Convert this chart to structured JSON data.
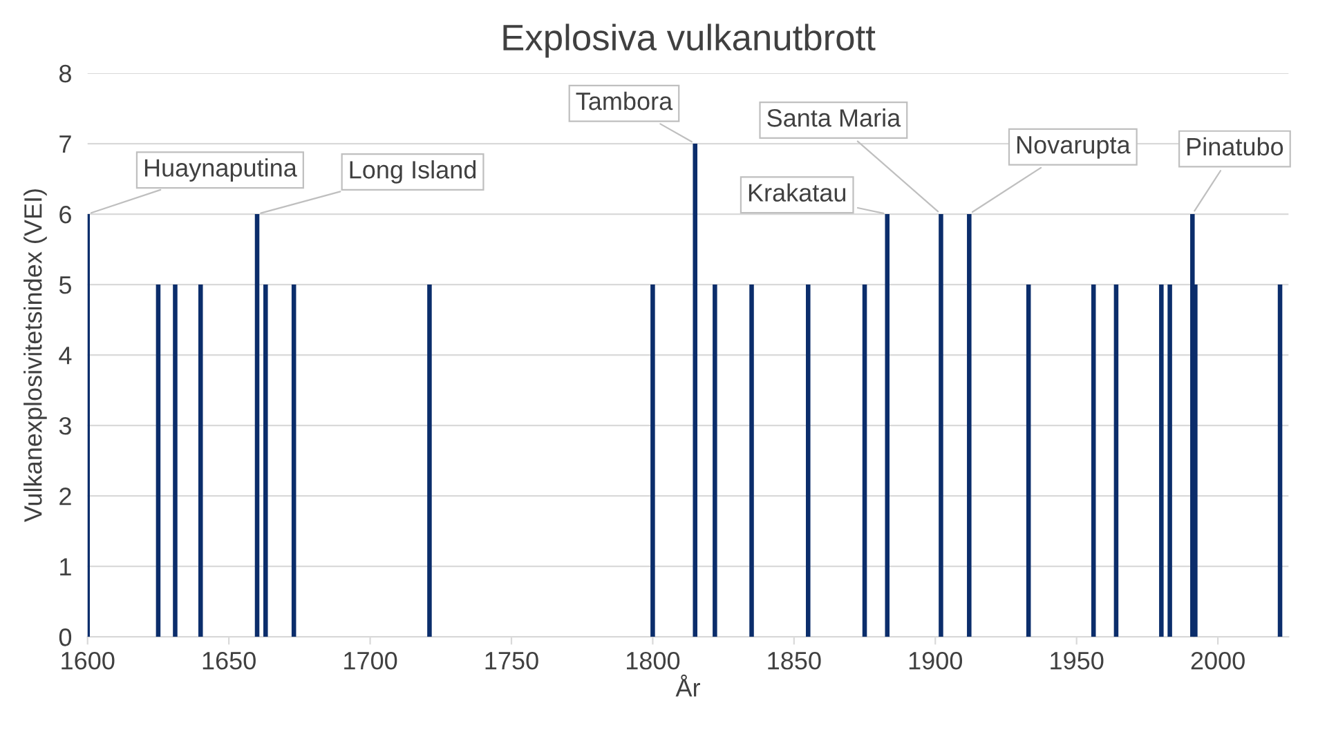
{
  "chart_data": {
    "type": "bar",
    "title": "Explosiva vulkanutbrott",
    "xlabel": "År",
    "ylabel": "Vulkanexplosivitetsindex (VEI)",
    "x": [
      1600,
      1625,
      1631,
      1640,
      1660,
      1663,
      1673,
      1721,
      1800,
      1815,
      1822,
      1835,
      1855,
      1875,
      1883,
      1902,
      1912,
      1933,
      1956,
      1964,
      1980,
      1983,
      1991,
      1992,
      2022
    ],
    "values": [
      6,
      5,
      5,
      5,
      6,
      5,
      5,
      5,
      5,
      7,
      5,
      5,
      5,
      5,
      6,
      6,
      6,
      5,
      5,
      5,
      5,
      5,
      6,
      5,
      5
    ],
    "color": "#0b2d6b",
    "xlim": [
      1600,
      2025
    ],
    "xticks": [
      1600,
      1650,
      1700,
      1750,
      1800,
      1850,
      1900,
      1950,
      2000
    ],
    "ylim": [
      0,
      8
    ],
    "yticks": [
      0,
      1,
      2,
      3,
      4,
      5,
      6,
      7,
      8
    ],
    "grid": "y",
    "annotations": [
      {
        "text": "Huaynaputina",
        "x": 1600,
        "y": 6
      },
      {
        "text": "Long Island",
        "x": 1660,
        "y": 6
      },
      {
        "text": "Tambora",
        "x": 1815,
        "y": 7
      },
      {
        "text": "Krakatau",
        "x": 1883,
        "y": 6
      },
      {
        "text": "Santa Maria",
        "x": 1902,
        "y": 6
      },
      {
        "text": "Novarupta",
        "x": 1912,
        "y": 6
      },
      {
        "text": "Pinatubo",
        "x": 1991,
        "y": 6
      }
    ]
  }
}
